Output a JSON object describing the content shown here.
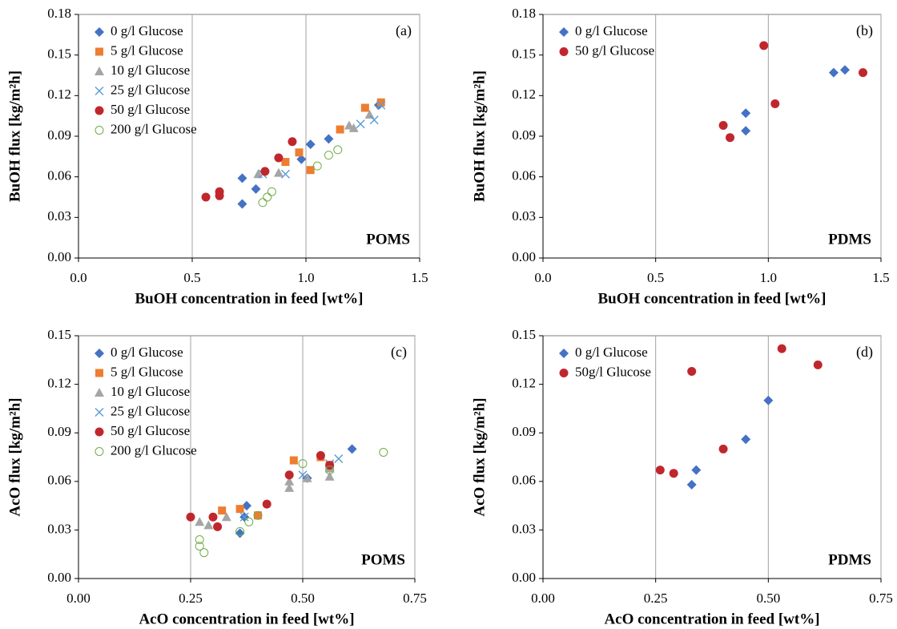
{
  "chart_data": [
    {
      "type": "scatter",
      "panel": "(a)",
      "label": "POMS",
      "x_label": "BuOH concentration  in feed [wt%]",
      "y_label": "BuOH flux [kg/m²h]",
      "xlim": [
        0,
        1.5
      ],
      "ylim": [
        0,
        0.18
      ],
      "xticks": [
        {
          "value": 0,
          "label": "0.0"
        },
        0.5,
        {
          "value": 1,
          "label": "1.0"
        },
        1.5
      ],
      "yticks": [
        {
          "value": 0,
          "label": "0.00"
        },
        0.03,
        0.06,
        0.09,
        0.12,
        0.15,
        0.18
      ],
      "grid": "x",
      "legend": "upper left",
      "series": [
        {
          "name": "0 g/l Glucose",
          "color": "#4472c4",
          "marker": "diamond",
          "x": [
            0.72,
            0.72,
            0.78,
            0.98,
            1.02,
            1.1,
            1.32
          ],
          "values": [
            0.059,
            0.04,
            0.051,
            0.073,
            0.084,
            0.088,
            0.113
          ]
        },
        {
          "name": "5 g/l Glucose",
          "color": "#ed7d31",
          "marker": "square",
          "x": [
            0.91,
            0.97,
            1.02,
            1.15,
            1.26,
            1.33
          ],
          "values": [
            0.071,
            0.078,
            0.065,
            0.095,
            0.111,
            0.115
          ]
        },
        {
          "name": "10 g/l Glucose",
          "color": "#a5a5a5",
          "marker": "triangle",
          "x": [
            0.79,
            0.88,
            1.19,
            1.21,
            1.28
          ],
          "values": [
            0.062,
            0.063,
            0.098,
            0.096,
            0.106
          ]
        },
        {
          "name": "25 g/l Glucose",
          "color": "#5b9bd5",
          "marker": "cross",
          "x": [
            0.81,
            0.91,
            1.24,
            1.3,
            1.33
          ],
          "values": [
            0.062,
            0.062,
            0.099,
            0.102,
            0.113
          ]
        },
        {
          "name": "50 g/l Glucose",
          "color": "#c0272d",
          "marker": "circle",
          "x": [
            0.56,
            0.62,
            0.62,
            0.82,
            0.88,
            0.94
          ],
          "values": [
            0.045,
            0.049,
            0.046,
            0.064,
            0.074,
            0.086
          ]
        },
        {
          "name": "200 g/l Glucose",
          "color": "#70ad47",
          "marker": "open-circle",
          "x": [
            0.81,
            0.83,
            0.85,
            1.05,
            1.1,
            1.14
          ],
          "values": [
            0.041,
            0.045,
            0.049,
            0.068,
            0.076,
            0.08
          ]
        }
      ]
    },
    {
      "type": "scatter",
      "panel": "(b)",
      "label": "PDMS",
      "x_label": "BuOH concentration  in feed [wt%]",
      "y_label": "BuOH flux [kg/m²h]",
      "xlim": [
        0,
        1.5
      ],
      "ylim": [
        0,
        0.18
      ],
      "xticks": [
        {
          "value": 0,
          "label": "0.0"
        },
        0.5,
        {
          "value": 1,
          "label": "1.0"
        },
        1.5
      ],
      "yticks": [
        {
          "value": 0,
          "label": "0.00"
        },
        0.03,
        0.06,
        0.09,
        0.12,
        0.15,
        0.18
      ],
      "grid": "x",
      "legend": "upper left",
      "series": [
        {
          "name": "0 g/l Glucose",
          "color": "#4472c4",
          "marker": "diamond",
          "x": [
            0.9,
            0.9,
            1.29,
            1.34
          ],
          "values": [
            0.094,
            0.107,
            0.137,
            0.139
          ]
        },
        {
          "name": "50 g/l Glucose",
          "color": "#c0272d",
          "marker": "circle",
          "x": [
            0.8,
            0.83,
            0.98,
            1.03,
            1.42
          ],
          "values": [
            0.098,
            0.089,
            0.157,
            0.114,
            0.137
          ]
        }
      ]
    },
    {
      "type": "scatter",
      "panel": "(c)",
      "label": "POMS",
      "x_label": "AcO concentration  in feed [wt%]",
      "y_label": "AcO flux [kg/m²h]",
      "xlim": [
        0,
        0.75
      ],
      "ylim": [
        0,
        0.15
      ],
      "xticks": [
        {
          "value": 0,
          "label": "0.00"
        },
        0.25,
        {
          "value": 0.5,
          "label": "0.50"
        },
        0.75
      ],
      "yticks": [
        {
          "value": 0,
          "label": "0.00"
        },
        0.03,
        0.06,
        0.09,
        0.12,
        0.15
      ],
      "grid": "x",
      "legend": "upper left",
      "series": [
        {
          "name": "0 g/l Glucose",
          "color": "#4472c4",
          "marker": "diamond",
          "x": [
            0.36,
            0.37,
            0.375,
            0.51,
            0.61
          ],
          "values": [
            0.028,
            0.038,
            0.045,
            0.062,
            0.08
          ]
        },
        {
          "name": "5 g/l Glucose",
          "color": "#ed7d31",
          "marker": "square",
          "x": [
            0.32,
            0.36,
            0.4,
            0.48,
            0.54,
            0.56
          ],
          "values": [
            0.042,
            0.043,
            0.039,
            0.073,
            0.075,
            0.07
          ]
        },
        {
          "name": "10 g/l Glucose",
          "color": "#a5a5a5",
          "marker": "triangle",
          "x": [
            0.27,
            0.29,
            0.33,
            0.47,
            0.47,
            0.51,
            0.56,
            0.56
          ],
          "values": [
            0.035,
            0.033,
            0.038,
            0.056,
            0.06,
            0.062,
            0.063,
            0.068
          ]
        },
        {
          "name": "25 g/l Glucose",
          "color": "#5b9bd5",
          "marker": "cross",
          "x": [
            0.37,
            0.5,
            0.56,
            0.58
          ],
          "values": [
            0.038,
            0.064,
            0.071,
            0.074
          ]
        },
        {
          "name": "50 g/l Glucose",
          "color": "#c0272d",
          "marker": "circle",
          "x": [
            0.25,
            0.3,
            0.31,
            0.42,
            0.47,
            0.54,
            0.56
          ],
          "values": [
            0.038,
            0.038,
            0.032,
            0.046,
            0.064,
            0.076,
            0.07
          ]
        },
        {
          "name": "200 g/l Glucose",
          "color": "#70ad47",
          "marker": "open-circle",
          "x": [
            0.27,
            0.27,
            0.28,
            0.36,
            0.38,
            0.4,
            0.5,
            0.56,
            0.68
          ],
          "values": [
            0.02,
            0.024,
            0.016,
            0.029,
            0.035,
            0.039,
            0.071,
            0.067,
            0.078
          ]
        }
      ]
    },
    {
      "type": "scatter",
      "panel": "(d)",
      "label": "PDMS",
      "x_label": "AcO concentration  in feed [wt%]",
      "y_label": "AcO flux [kg/m²h]",
      "xlim": [
        0,
        0.75
      ],
      "ylim": [
        0,
        0.15
      ],
      "xticks": [
        {
          "value": 0,
          "label": "0.00"
        },
        0.25,
        {
          "value": 0.5,
          "label": "0.50"
        },
        0.75
      ],
      "yticks": [
        {
          "value": 0,
          "label": "0.00"
        },
        0.03,
        0.06,
        0.09,
        0.12,
        0.15
      ],
      "grid": "x",
      "legend": "upper left",
      "series": [
        {
          "name": "0 g/l Glucose",
          "color": "#4472c4",
          "marker": "diamond",
          "x": [
            0.33,
            0.34,
            0.45,
            0.5
          ],
          "values": [
            0.058,
            0.067,
            0.086,
            0.11
          ]
        },
        {
          "name": "50g/l Glucose",
          "color": "#c0272d",
          "marker": "circle",
          "x": [
            0.26,
            0.29,
            0.33,
            0.4,
            0.53,
            0.61
          ],
          "values": [
            0.067,
            0.065,
            0.128,
            0.08,
            0.142,
            0.132
          ]
        }
      ]
    }
  ]
}
